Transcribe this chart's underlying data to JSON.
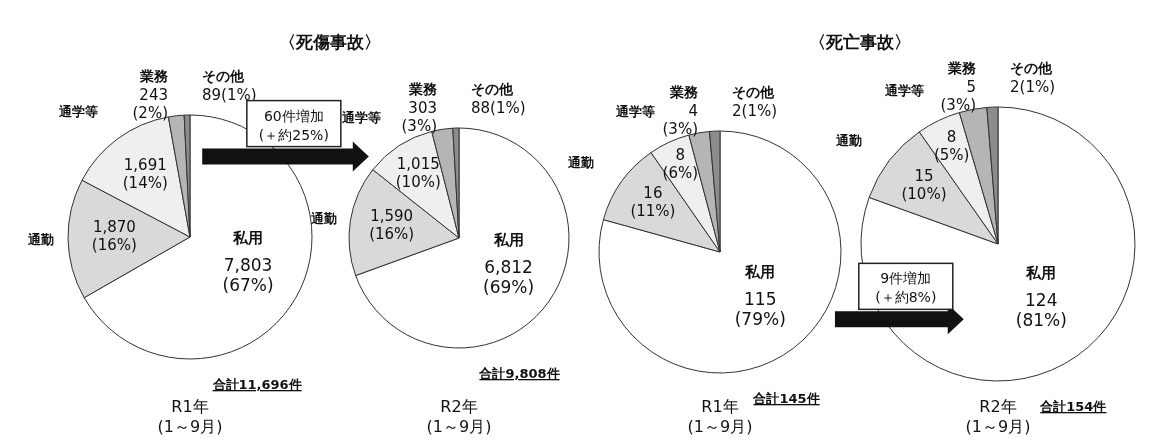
{
  "chart_data": [
    {
      "type": "pie",
      "title": "〈死傷事故〉",
      "subtitle": "R1年\n(1～9月)",
      "categories": [
        "私用",
        "通勤",
        "通学等",
        "業務",
        "その他"
      ],
      "values": [
        7803,
        1870,
        1691,
        243,
        89
      ],
      "colors": [
        "#ffffff",
        "#d9d9d9",
        "#efefef",
        "#b5b5b5",
        "#8c8c8c"
      ],
      "value_labels": [
        "7,803\n(67%)",
        "1,870\n(16%)",
        "1,691\n(14%)",
        "243\n(2%)",
        "89(1%)"
      ],
      "annotations": [
        "合計11,696件"
      ]
    },
    {
      "type": "pie",
      "subtitle": "R2年\n(1～9月)",
      "categories": [
        "私用",
        "通勤",
        "通学等",
        "業務",
        "その他"
      ],
      "values": [
        6812,
        1590,
        1015,
        303,
        88
      ],
      "colors": [
        "#ffffff",
        "#d9d9d9",
        "#efefef",
        "#b5b5b5",
        "#8c8c8c"
      ],
      "value_labels": [
        "6,812\n(69%)",
        "1,590\n(16%)",
        "1,015\n(10%)",
        "303\n(3%)",
        "88(1%)"
      ],
      "annotations": [
        "合計9,808件",
        "60件増加\n(＋約25%)"
      ]
    },
    {
      "type": "pie",
      "title": "〈死亡事故〉",
      "subtitle": "R1年\n(1～9月)",
      "categories": [
        "私用",
        "通勤",
        "通学等",
        "業務",
        "その他"
      ],
      "values": [
        115,
        16,
        8,
        4,
        2
      ],
      "colors": [
        "#ffffff",
        "#d9d9d9",
        "#efefef",
        "#b5b5b5",
        "#8c8c8c"
      ],
      "value_labels": [
        "115\n(79%)",
        "16\n(11%)",
        "8\n(6%)",
        "4\n(3%)",
        "2(1%)"
      ],
      "annotations": [
        "合計145件"
      ]
    },
    {
      "type": "pie",
      "subtitle": "R2年\n(1～9月)",
      "categories": [
        "私用",
        "通勤",
        "通学等",
        "業務",
        "その他"
      ],
      "values": [
        124,
        15,
        8,
        5,
        2
      ],
      "colors": [
        "#ffffff",
        "#d9d9d9",
        "#efefef",
        "#b5b5b5",
        "#8c8c8c"
      ],
      "value_labels": [
        "124\n(81%)",
        "15\n(10%)",
        "8\n(5%)",
        "5\n(3%)",
        "2(1%)"
      ],
      "annotations": [
        "合計154件",
        "9件増加\n(＋約8%)"
      ]
    }
  ]
}
